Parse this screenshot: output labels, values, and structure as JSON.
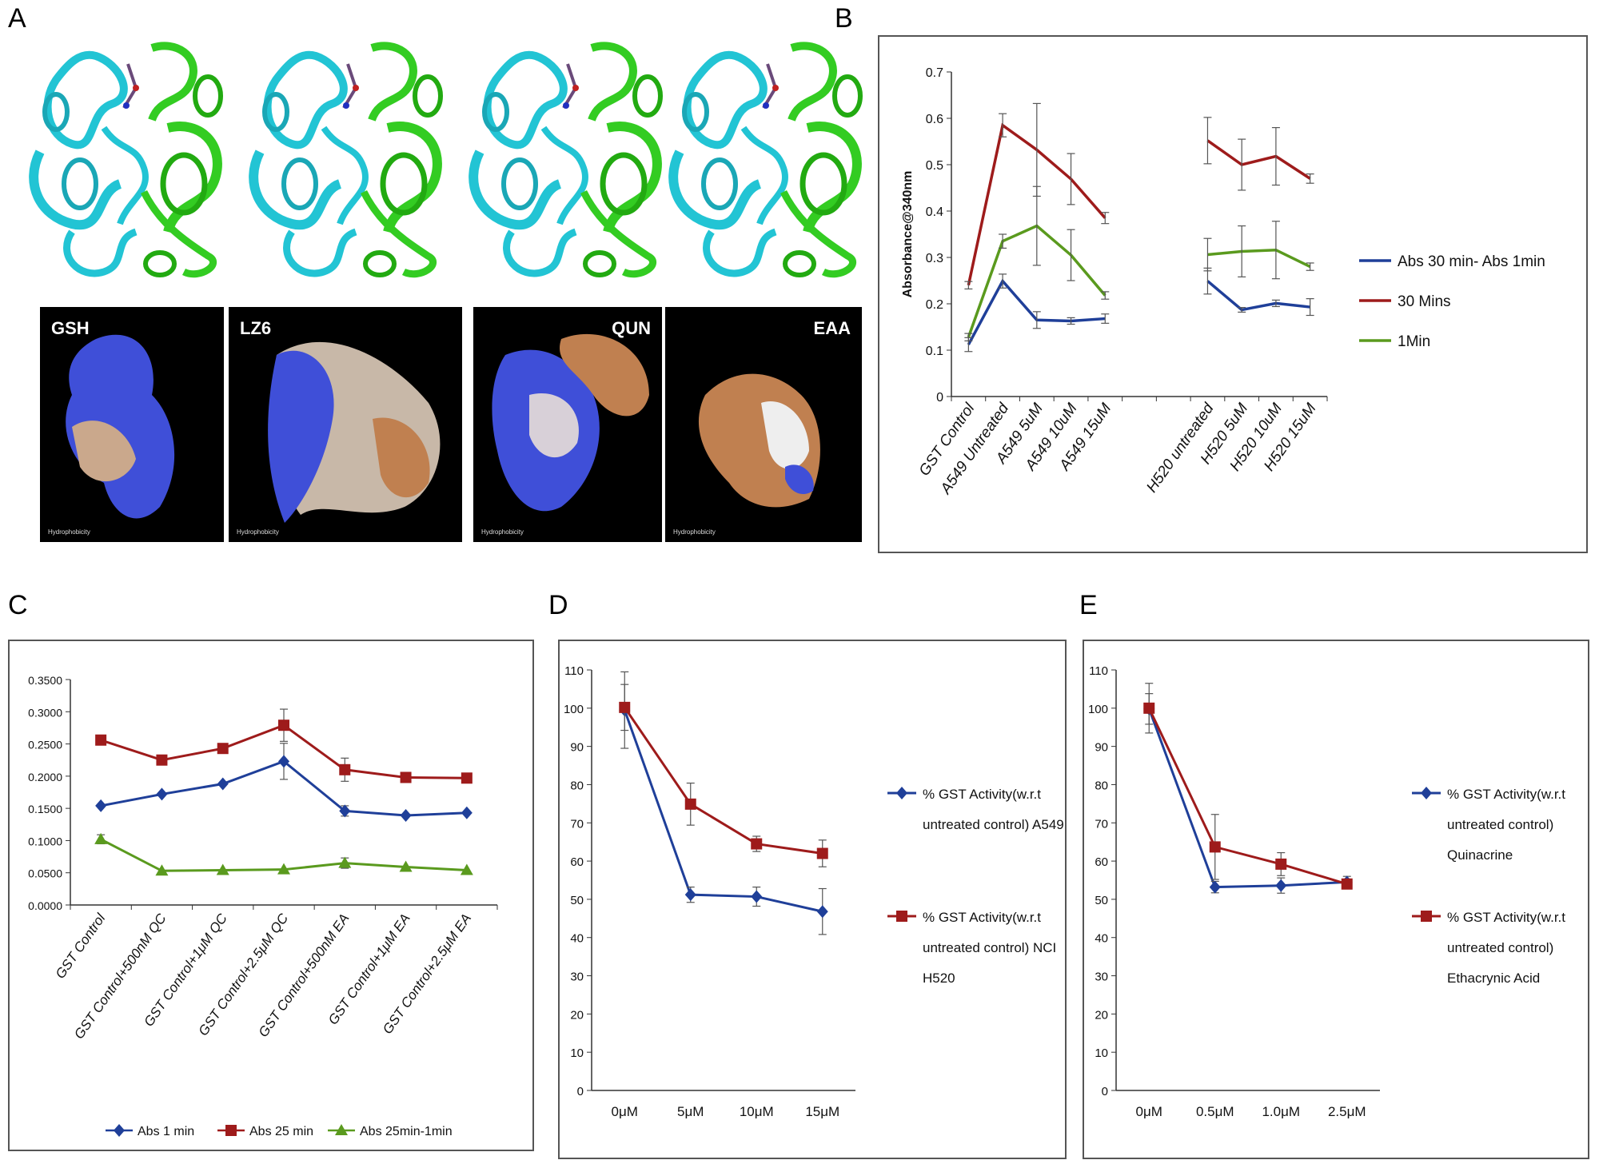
{
  "panels": {
    "a": "A",
    "b": "B",
    "c": "C",
    "d": "D",
    "e": "E"
  },
  "docking": [
    {
      "label": "GSH",
      "hydrophobicity": "Hydrophobicity"
    },
    {
      "label": "LZ6",
      "hydrophobicity": "Hydrophobicity"
    },
    {
      "label": "QUN",
      "hydrophobicity": "Hydrophobicity"
    },
    {
      "label": "EAA",
      "hydrophobicity": "Hydrophobicity"
    }
  ],
  "colors": {
    "blue": "#1f3f99",
    "red": "#9e1b1b",
    "green": "#5a9a1e",
    "cyan": "#22c4d4",
    "lime": "#33cc22"
  },
  "chart_data": [
    {
      "id": "B",
      "type": "line",
      "ylabel": "Absorbance@340nm",
      "ylim": [
        0,
        0.7
      ],
      "yticks": [
        "0",
        "0.1",
        "0.2",
        "0.3",
        "0.4",
        "0.5",
        "0.6",
        "0.7"
      ],
      "categories": [
        "GST Control",
        "A549 Untreated",
        "A549 5uM",
        "A549 10uM",
        "A549 15uM",
        "",
        "",
        "H520 untreated",
        "H520 5uM",
        "H520 10uM",
        "H520 15uM"
      ],
      "legend_position": "right",
      "series": [
        {
          "name": "Abs 30 min- Abs 1min",
          "color": "#1f3f99",
          "segments": [
            [
              0,
              1,
              2,
              3,
              4
            ],
            [
              7,
              8,
              9,
              10
            ]
          ],
          "values": [
            0.112,
            0.249,
            0.165,
            0.163,
            0.168,
            null,
            null,
            0.249,
            0.187,
            0.201,
            0.193
          ],
          "errors": [
            0.015,
            0.015,
            0.018,
            0.007,
            0.01,
            null,
            null,
            0.028,
            0.005,
            0.007,
            0.018
          ]
        },
        {
          "name": "30 Mins",
          "color": "#9e1b1b",
          "segments": [
            [
              0,
              1,
              2,
              3,
              4
            ],
            [
              7,
              8,
              9,
              10
            ]
          ],
          "values": [
            0.24,
            0.585,
            0.532,
            0.469,
            0.385,
            null,
            null,
            0.552,
            0.5,
            0.518,
            0.47
          ],
          "errors": [
            0.008,
            0.025,
            0.1,
            0.055,
            0.012,
            null,
            null,
            0.05,
            0.055,
            0.062,
            0.01
          ]
        },
        {
          "name": "1Min",
          "color": "#5a9a1e",
          "segments": [
            [
              0,
              1,
              2,
              3,
              4
            ],
            [
              7,
              8,
              9,
              10
            ]
          ],
          "values": [
            0.128,
            0.335,
            0.368,
            0.305,
            0.218,
            null,
            null,
            0.306,
            0.313,
            0.316,
            0.28
          ],
          "errors": [
            0.008,
            0.015,
            0.085,
            0.055,
            0.008,
            null,
            null,
            0.035,
            0.055,
            0.062,
            0.008
          ]
        }
      ]
    },
    {
      "id": "C",
      "type": "line",
      "ylim": [
        0,
        0.35
      ],
      "yticks": [
        "0.0000",
        "0.0500",
        "0.1000",
        "0.1500",
        "0.2000",
        "0.2500",
        "0.3000",
        "0.3500"
      ],
      "categories": [
        "GST Control",
        "GST Control+500nM QC",
        "GST Control+1μM QC",
        "GST Control+2.5μM QC",
        "GST Control+500nM EA",
        "GST Control+1μM EA",
        "GST Control+2.5μM EA"
      ],
      "legend_position": "bottom",
      "series": [
        {
          "name": "Abs 1 min",
          "color": "#1f3f99",
          "marker": "diamond",
          "values": [
            0.154,
            0.172,
            0.188,
            0.223,
            0.146,
            0.139,
            0.143
          ],
          "errors": [
            0,
            0,
            0,
            0.028,
            0.008,
            0,
            0
          ]
        },
        {
          "name": "Abs 25 min",
          "color": "#9e1b1b",
          "marker": "square",
          "values": [
            0.256,
            0.225,
            0.243,
            0.279,
            0.21,
            0.198,
            0.197
          ],
          "errors": [
            0,
            0,
            0,
            0.025,
            0.018,
            0,
            0
          ]
        },
        {
          "name": "Abs 25min-1min",
          "color": "#5a9a1e",
          "marker": "triangle",
          "values": [
            0.102,
            0.053,
            0.054,
            0.055,
            0.065,
            0.059,
            0.054
          ],
          "errors": [
            0.007,
            0,
            0,
            0,
            0.008,
            0,
            0
          ]
        }
      ]
    },
    {
      "id": "D",
      "type": "line",
      "ylim": [
        0,
        110
      ],
      "yticks": [
        "0",
        "10",
        "20",
        "30",
        "40",
        "50",
        "60",
        "70",
        "80",
        "90",
        "100",
        "110"
      ],
      "categories": [
        "0μM",
        "5μM",
        "10μM",
        "15μM"
      ],
      "legend_position": "right",
      "series": [
        {
          "name": "% GST Activity(w.r.t untreated control) A549",
          "lines": [
            "% GST Activity(w.r.t",
            "untreated control) A549"
          ],
          "color": "#1f3f99",
          "marker": "diamond",
          "values": [
            99.5,
            51.2,
            50.7,
            46.8
          ],
          "errors": [
            10,
            2,
            2.5,
            6
          ]
        },
        {
          "name": "% GST Activity(w.r.t untreated control) NCI H520",
          "lines": [
            "% GST Activity(w.r.t",
            "untreated control) NCI",
            "H520"
          ],
          "color": "#9e1b1b",
          "marker": "square",
          "values": [
            100.2,
            74.9,
            64.5,
            62
          ],
          "errors": [
            6,
            5.5,
            2,
            3.5
          ]
        }
      ]
    },
    {
      "id": "E",
      "type": "line",
      "ylim": [
        0,
        110
      ],
      "yticks": [
        "0",
        "10",
        "20",
        "30",
        "40",
        "50",
        "60",
        "70",
        "80",
        "90",
        "100",
        "110"
      ],
      "categories": [
        "0μM",
        "0.5μM",
        "1.0μM",
        "2.5μM"
      ],
      "legend_position": "right",
      "series": [
        {
          "name": "% GST Activity(w.r.t untreated control) Quinacrine",
          "lines": [
            "% GST Activity(w.r.t",
            "untreated control)",
            "Quinacrine"
          ],
          "color": "#1f3f99",
          "marker": "diamond",
          "values": [
            99.8,
            53.2,
            53.6,
            54.5
          ],
          "errors": [
            4,
            1.5,
            2,
            1.5
          ]
        },
        {
          "name": "% GST Activity(w.r.t untreated control) Ethacrynic Acid",
          "lines": [
            "% GST Activity(w.r.t",
            "untreated control)",
            "Ethacrynic Acid"
          ],
          "color": "#9e1b1b",
          "marker": "square",
          "values": [
            100,
            63.7,
            59.2,
            54
          ],
          "errors": [
            6.5,
            8.5,
            3,
            1
          ]
        }
      ]
    }
  ]
}
